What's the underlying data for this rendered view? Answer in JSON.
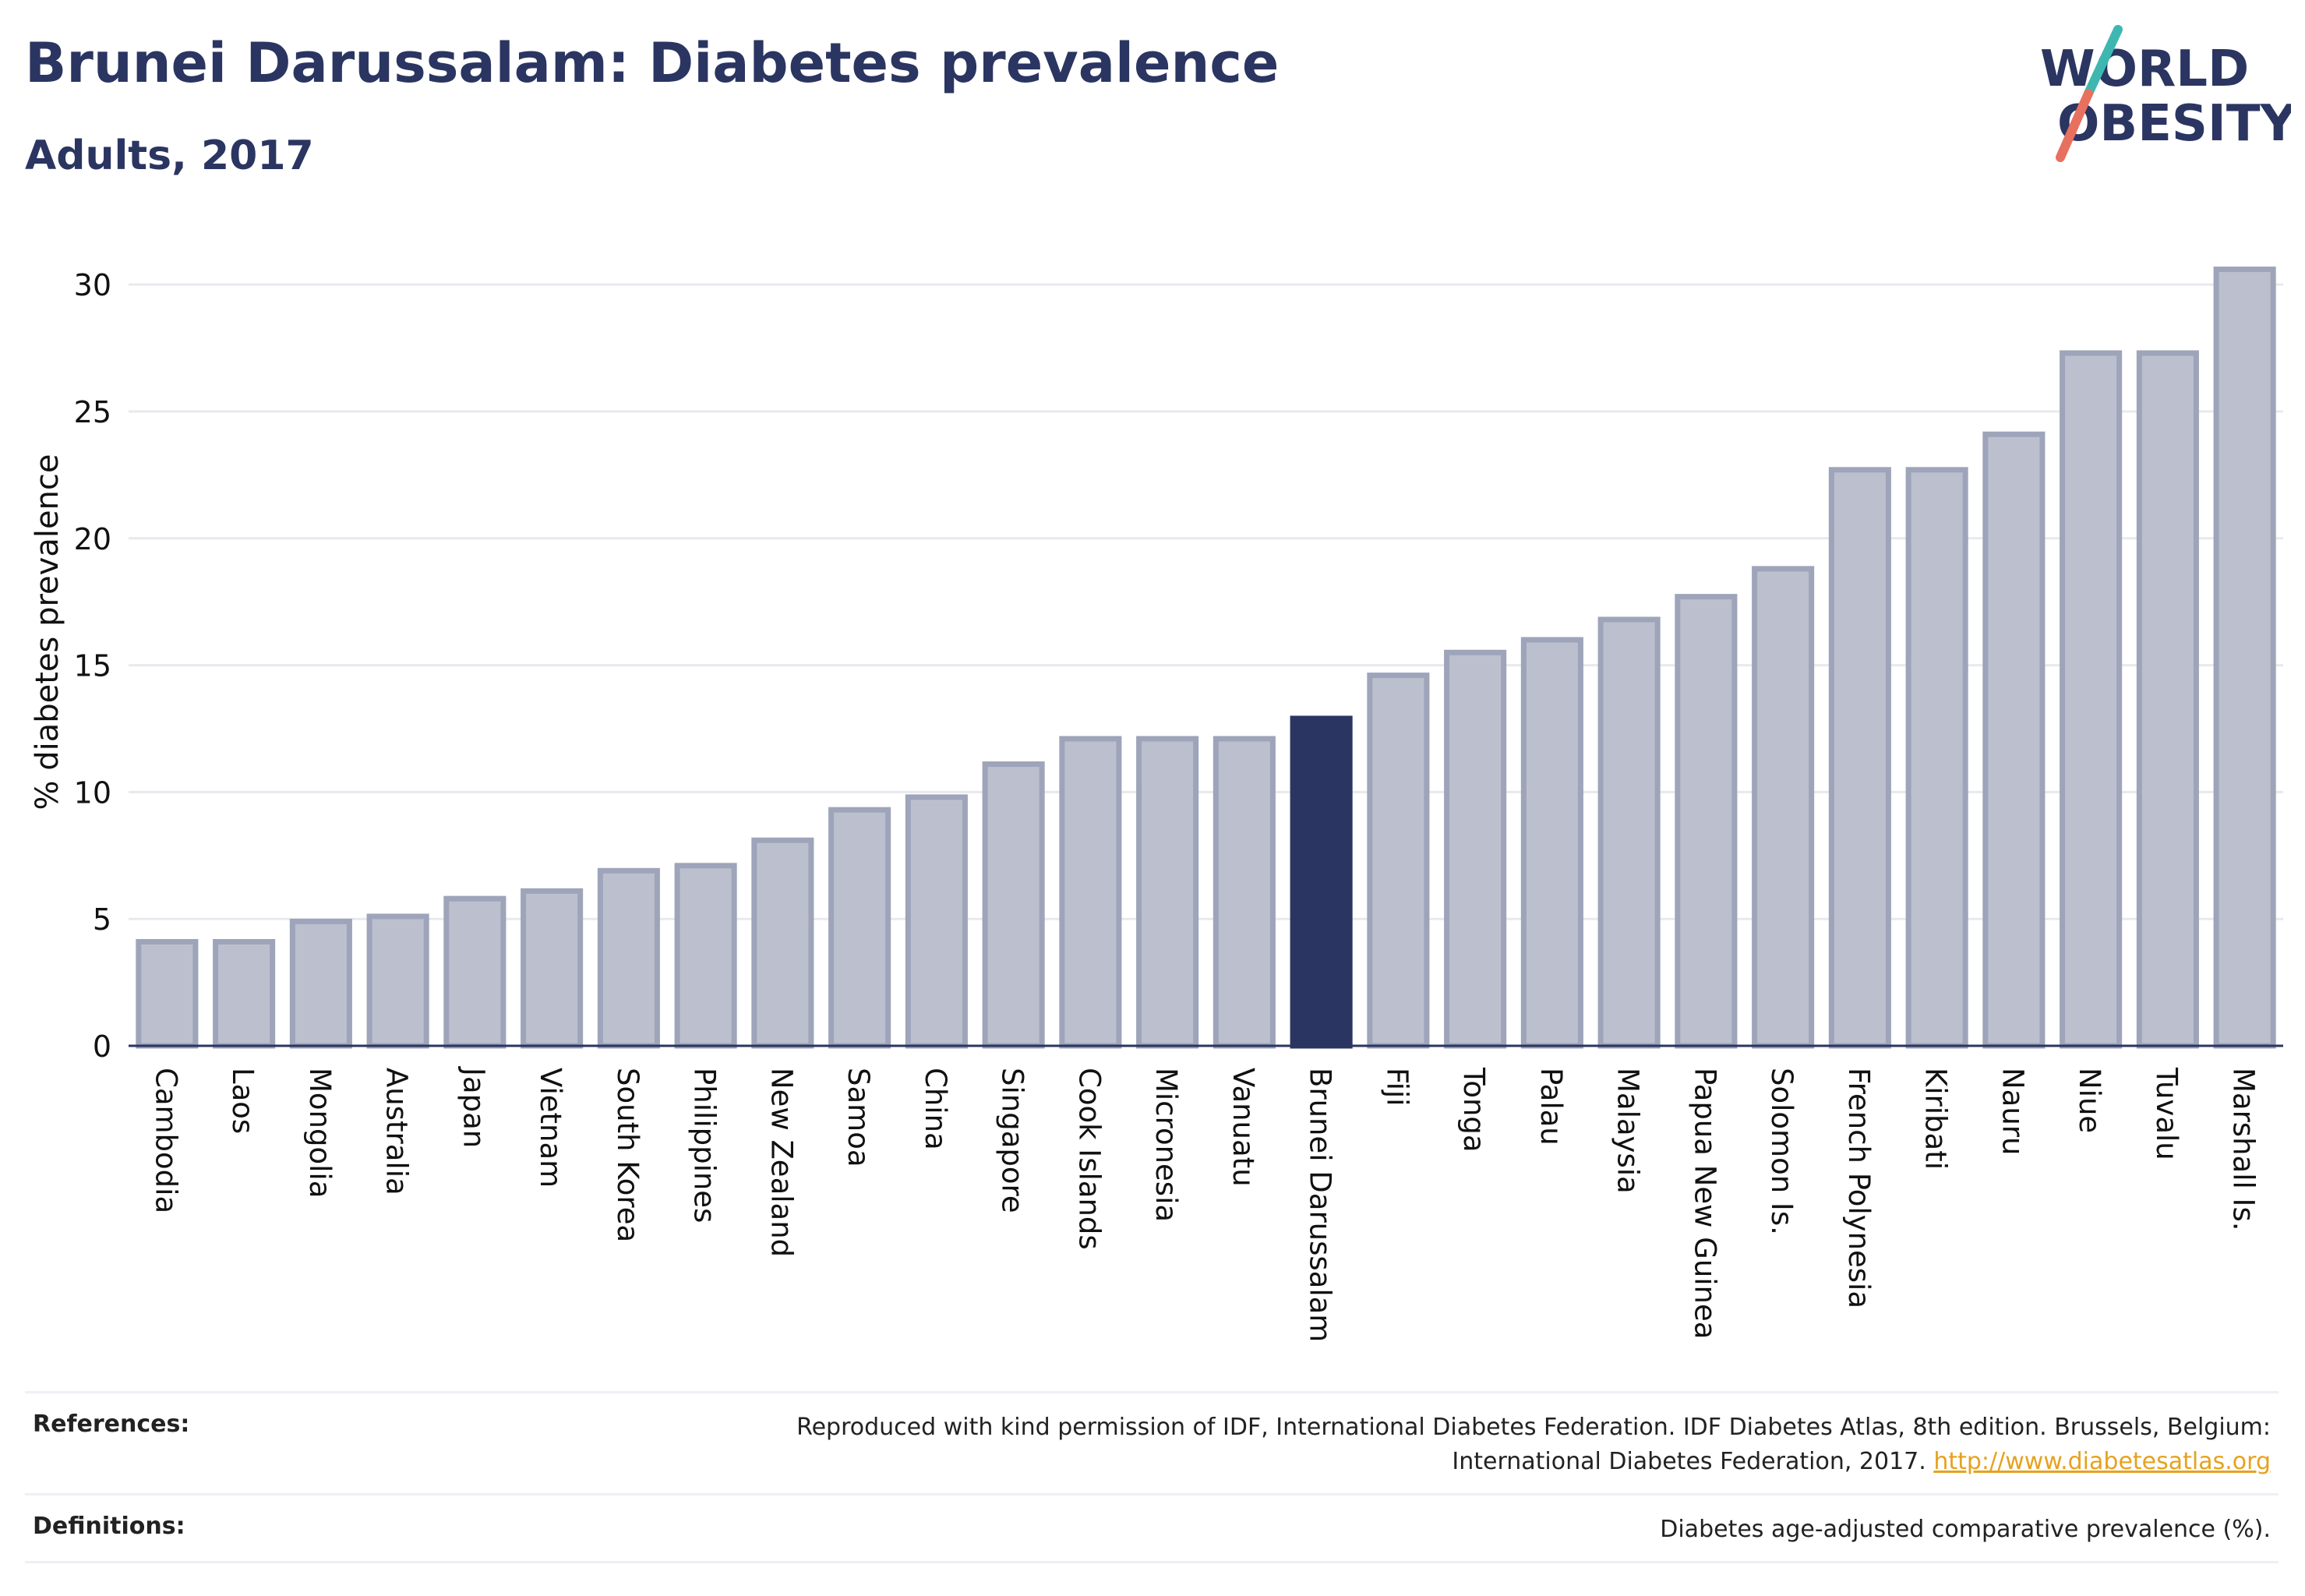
{
  "header": {
    "title": "Brunei Darussalam: Diabetes prevalence",
    "subtitle": "Adults, 2017",
    "logo_line1": "WORLD",
    "logo_line2": "OBESITY"
  },
  "colors": {
    "title": "#2b3561",
    "bar": "#bcc0ce",
    "bar_border": "#9ea4b9",
    "highlight": "#2b3561",
    "grid": "#e8e9ee",
    "logo_teal": "#3fb7b1",
    "logo_coral": "#e8705f",
    "link": "#e6a21e"
  },
  "chart_data": {
    "type": "bar",
    "ylabel": "% diabetes prevalence",
    "ylim": [
      0,
      32
    ],
    "yticks": [
      0,
      5,
      10,
      15,
      20,
      25,
      30
    ],
    "grid": true,
    "highlight": "Brunei Darussalam",
    "categories": [
      "Cambodia",
      "Laos",
      "Mongolia",
      "Australia",
      "Japan",
      "Vietnam",
      "South Korea",
      "Philippines",
      "New Zealand",
      "Samoa",
      "China",
      "Singapore",
      "Cook Islands",
      "Micronesia",
      "Vanuatu",
      "Brunei Darussalam",
      "Fiji",
      "Tonga",
      "Palau",
      "Malaysia",
      "Papua New Guinea",
      "Solomon Is.",
      "French Polynesia",
      "Kiribati",
      "Nauru",
      "Niue",
      "Tuvalu",
      "Marshall Is."
    ],
    "values": [
      4.1,
      4.1,
      4.9,
      5.1,
      5.8,
      6.1,
      6.9,
      7.1,
      8.1,
      9.3,
      9.8,
      11.1,
      12.1,
      12.1,
      12.1,
      12.9,
      14.6,
      15.5,
      16.0,
      16.8,
      17.7,
      18.8,
      22.7,
      22.7,
      24.1,
      27.3,
      27.3,
      30.6
    ]
  },
  "footer": {
    "references_label": "References:",
    "references_line1": "Reproduced with kind permission of IDF, International Diabetes Federation. IDF Diabetes Atlas, 8th edition. Brussels, Belgium:",
    "references_line2": "International Diabetes Federation, 2017.",
    "references_link": "http://www.diabetesatlas.org",
    "definitions_label": "Definitions:",
    "definitions_text": "Diabetes age-adjusted comparative prevalence (%)."
  }
}
